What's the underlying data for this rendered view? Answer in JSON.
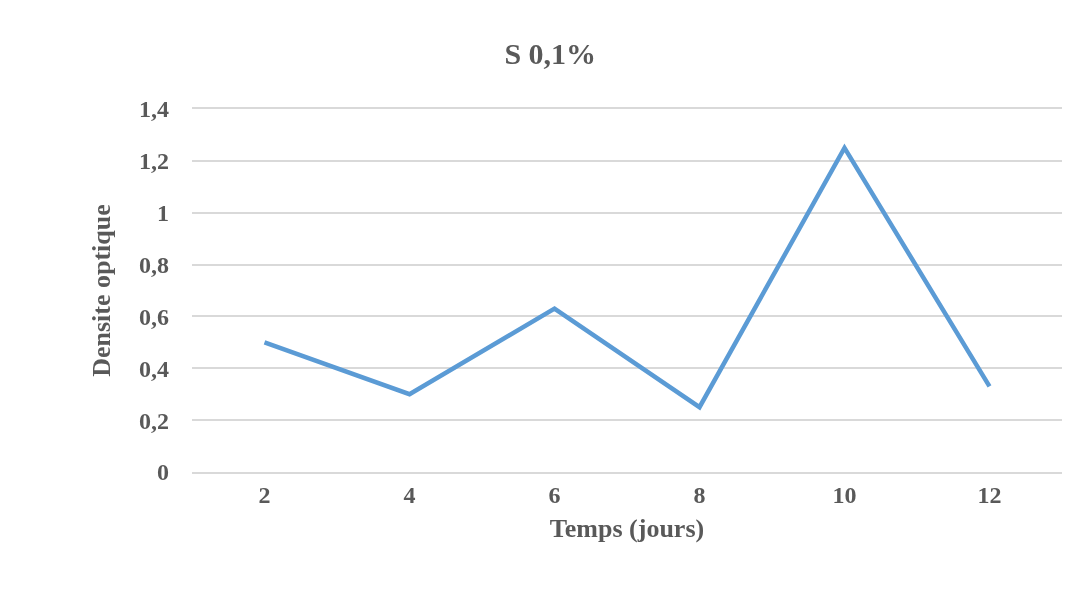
{
  "chart_data": {
    "type": "line",
    "title": "S 0,1%",
    "xlabel": "Temps (jours)",
    "ylabel": "Densite optique",
    "categories": [
      "2",
      "4",
      "6",
      "8",
      "10",
      "12"
    ],
    "series": [
      {
        "color": "#5b9bd5",
        "values": [
          0.5,
          0.3,
          0.63,
          0.25,
          1.25,
          0.33
        ]
      }
    ],
    "ylim": [
      0,
      1.4
    ],
    "yticks": [
      0,
      {
        "value": 0.2,
        "label": "0,2"
      },
      {
        "value": 0.4,
        "label": "0,4"
      },
      {
        "value": 0.6,
        "label": "0,6"
      },
      {
        "value": 0.8,
        "label": "0,8"
      },
      1,
      {
        "value": 1.2,
        "label": "1,2"
      },
      {
        "value": 1.4,
        "label": "1,4"
      }
    ],
    "grid": "y",
    "marker": "none",
    "line_style": "solid"
  }
}
